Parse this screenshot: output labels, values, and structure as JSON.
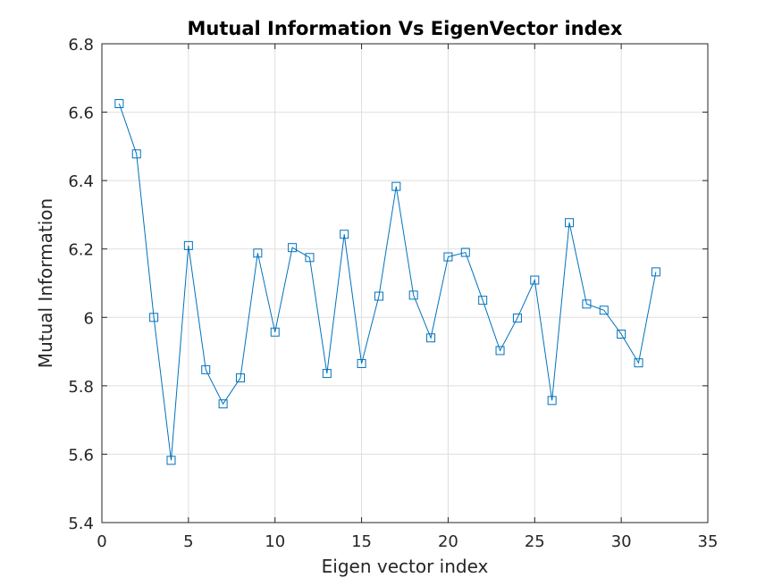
{
  "chart_data": {
    "type": "line",
    "title": "Mutual Information Vs EigenVector index",
    "xlabel": "Eigen vector index",
    "ylabel": "Mutual Information",
    "xlim": [
      0,
      35
    ],
    "ylim": [
      5.4,
      6.8
    ],
    "xticks": [
      0,
      5,
      10,
      15,
      20,
      25,
      30,
      35
    ],
    "xtick_labels": [
      "0",
      "5",
      "10",
      "15",
      "20",
      "25",
      "30",
      "35"
    ],
    "yticks": [
      5.4,
      5.6,
      5.8,
      6.0,
      6.2,
      6.4,
      6.6,
      6.8
    ],
    "ytick_labels": [
      "5.4",
      "5.6",
      "5.8",
      "6",
      "6.2",
      "6.4",
      "6.6",
      "6.8"
    ],
    "grid": true,
    "marker": "square",
    "color": "#0072bd",
    "series": [
      {
        "x": [
          1,
          2,
          3,
          4,
          5,
          6,
          7,
          8,
          9,
          10,
          11,
          12,
          13,
          14,
          15,
          16,
          17,
          18,
          19,
          20,
          21,
          22,
          23,
          24,
          25,
          26,
          27,
          28,
          29,
          30,
          31,
          32
        ],
        "y": [
          6.625,
          6.478,
          6.0,
          5.582,
          6.21,
          5.847,
          5.747,
          5.823,
          6.188,
          5.957,
          6.204,
          6.175,
          5.836,
          6.243,
          5.865,
          6.062,
          6.383,
          6.065,
          5.94,
          6.177,
          6.19,
          6.05,
          5.903,
          5.998,
          6.109,
          5.757,
          6.277,
          6.039,
          6.021,
          5.951,
          5.867,
          6.133
        ]
      }
    ]
  }
}
